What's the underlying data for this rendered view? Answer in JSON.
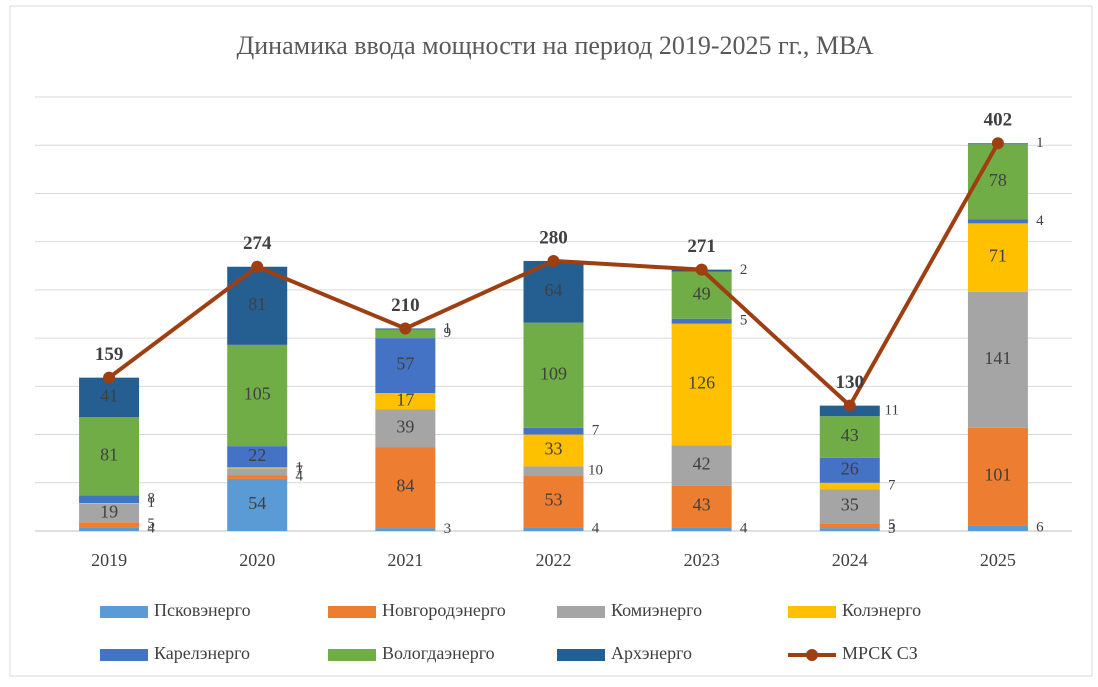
{
  "chart_data": {
    "type": "bar",
    "stacked": true,
    "title": "Динамика ввода мощности на период 2019-2025 гг., МВА",
    "categories": [
      "2019",
      "2020",
      "2021",
      "2022",
      "2023",
      "2024",
      "2025"
    ],
    "ylim": [
      0,
      450
    ],
    "yticks": [
      0,
      50,
      100,
      150,
      200,
      250,
      300,
      350,
      400,
      450
    ],
    "grid": true,
    "series": [
      {
        "name": "Псковэнерго",
        "color": "#5b9bd5",
        "values": [
          4,
          54,
          3,
          4,
          4,
          3,
          6
        ]
      },
      {
        "name": "Новгородэнерго",
        "color": "#ed7d31",
        "values": [
          5,
          4,
          84,
          53,
          43,
          5,
          101
        ]
      },
      {
        "name": "Комиэнерго",
        "color": "#a5a5a5",
        "values": [
          19,
          7,
          39,
          10,
          42,
          35,
          141
        ]
      },
      {
        "name": "Колэнерго",
        "color": "#ffc000",
        "values": [
          1,
          1,
          17,
          33,
          126,
          7,
          71
        ]
      },
      {
        "name": "Карелэнерго",
        "color": "#4472c4",
        "values": [
          8,
          22,
          57,
          7,
          5,
          26,
          4
        ]
      },
      {
        "name": "Вологдаэнерго",
        "color": "#70ad47",
        "values": [
          81,
          105,
          9,
          109,
          49,
          43,
          78
        ]
      },
      {
        "name": "Архэнерго",
        "color": "#255e91",
        "values": [
          41,
          81,
          1,
          64,
          2,
          11,
          1
        ]
      },
      {
        "name": "МРСК СЗ",
        "type": "line",
        "color": "#9e3f12",
        "values": [
          159,
          274,
          210,
          280,
          271,
          130,
          402
        ]
      }
    ]
  }
}
